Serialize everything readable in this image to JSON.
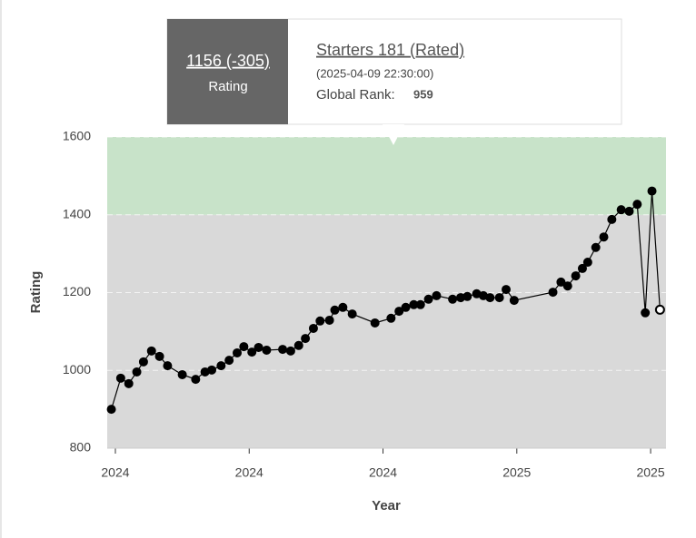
{
  "chart_data": {
    "type": "line",
    "x_label": "Year",
    "y_label": "Rating",
    "xlim": [
      -0.061,
      4.115
    ],
    "xticks": [
      {
        "value": 0,
        "label": "2024"
      },
      {
        "value": 1,
        "label": "2024"
      },
      {
        "value": 2,
        "label": "2024"
      },
      {
        "value": 3,
        "label": "2025"
      },
      {
        "value": 4,
        "label": "2025"
      }
    ],
    "ylim": [
      800,
      1600
    ],
    "yticks": [
      800,
      1000,
      1200,
      1400,
      1600
    ],
    "grid": true,
    "bands": [
      {
        "from": 800,
        "to": 1400,
        "color": "#d9d9d9"
      },
      {
        "from": 1400,
        "to": 1600,
        "color": "#c8e3c9"
      }
    ],
    "series": [
      {
        "color": "#000000",
        "x": [
          -0.03,
          0.04,
          0.1,
          0.16,
          0.21,
          0.27,
          0.33,
          0.39,
          0.5,
          0.6,
          0.67,
          0.72,
          0.79,
          0.85,
          0.91,
          0.96,
          1.02,
          1.07,
          1.13,
          1.25,
          1.31,
          1.37,
          1.42,
          1.48,
          1.53,
          1.6,
          1.64,
          1.7,
          1.77,
          1.94,
          2.06,
          2.12,
          2.17,
          2.23,
          2.28,
          2.34,
          2.4,
          2.52,
          2.58,
          2.63,
          2.7,
          2.75,
          2.8,
          2.87,
          2.92,
          2.98,
          3.27,
          3.33,
          3.38,
          3.44,
          3.49,
          3.53,
          3.59,
          3.65,
          3.71,
          3.78,
          3.84,
          3.9,
          3.96,
          4.01,
          4.07
        ],
        "values": [
          900,
          980,
          966,
          996,
          1022,
          1050,
          1036,
          1012,
          989,
          977,
          996,
          1001,
          1012,
          1026,
          1045,
          1061,
          1047,
          1059,
          1052,
          1054,
          1050,
          1064,
          1082,
          1108,
          1127,
          1129,
          1155,
          1162,
          1145,
          1122,
          1134,
          1152,
          1162,
          1169,
          1169,
          1183,
          1192,
          1183,
          1187,
          1190,
          1197,
          1192,
          1187,
          1187,
          1208,
          1180,
          1201,
          1227,
          1217,
          1243,
          1262,
          1278,
          1316,
          1343,
          1388,
          1413,
          1409,
          1427,
          1148,
          1461,
          1156
        ]
      }
    ],
    "tooltip": {
      "rating": "1156 (-305)",
      "rating_label": "Rating",
      "contest": "Starters 181 (Rated)",
      "date": "(2025-04-09 22:30:00)",
      "rank_label": "Global Rank:",
      "rank": 959
    }
  }
}
